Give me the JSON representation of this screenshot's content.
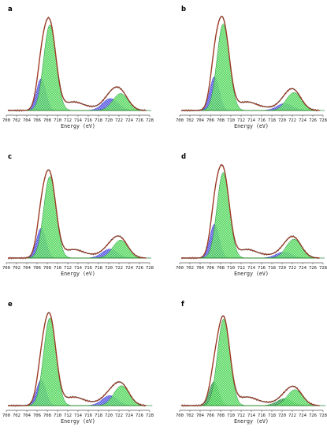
{
  "figure": {
    "colors": {
      "fit_envelope": "#a13b23",
      "data_points": "#4a4a4a",
      "peak_blue": "#3f3fe0",
      "peak_green": "#3fd24a",
      "peak_dark_green": "#1f8a3a",
      "baseline": "#2a8a2a",
      "axis": "#555555"
    }
  },
  "chart_data": [
    {
      "type": "line",
      "label": "a",
      "xlabel": "Energy (eV)",
      "xlim": [
        700,
        728
      ],
      "xticks": [
        700,
        702,
        704,
        706,
        708,
        710,
        712,
        714,
        716,
        718,
        720,
        722,
        724,
        726,
        728
      ],
      "grid": false,
      "series": [
        {
          "role": "fit-envelope",
          "peak_heights": [
            1.0,
            0.25
          ]
        },
        {
          "role": "peak-1",
          "center": 706.8,
          "height": 0.32
        },
        {
          "role": "peak-2",
          "center": 708.5,
          "height": 0.86
        },
        {
          "role": "peak-3",
          "center": 720.3,
          "height": 0.12
        },
        {
          "role": "peak-4",
          "center": 722.3,
          "height": 0.17
        }
      ]
    },
    {
      "type": "line",
      "label": "b",
      "xlabel": "Energy (eV)",
      "xlim": [
        700,
        728
      ],
      "xticks": [
        700,
        702,
        704,
        706,
        708,
        710,
        712,
        714,
        716,
        718,
        720,
        722,
        724,
        726,
        728
      ],
      "grid": false,
      "series": [
        {
          "role": "fit-envelope",
          "peak_heights": [
            1.0,
            0.24
          ]
        },
        {
          "role": "peak-1",
          "center": 706.8,
          "height": 0.34
        },
        {
          "role": "peak-2",
          "center": 708.5,
          "height": 0.87
        },
        {
          "role": "peak-3",
          "center": 720.5,
          "height": 0.07
        },
        {
          "role": "peak-4",
          "center": 722.3,
          "height": 0.18
        }
      ]
    },
    {
      "type": "line",
      "label": "c",
      "xlabel": "Energy (eV)",
      "xlim": [
        700,
        728
      ],
      "xticks": [
        700,
        702,
        704,
        706,
        708,
        710,
        712,
        714,
        716,
        718,
        720,
        722,
        724,
        726,
        728
      ],
      "grid": false,
      "series": [
        {
          "role": "fit-envelope",
          "peak_heights": [
            1.0,
            0.26
          ]
        },
        {
          "role": "peak-1",
          "center": 706.8,
          "height": 0.3
        },
        {
          "role": "peak-2",
          "center": 708.5,
          "height": 0.82
        },
        {
          "role": "peak-3",
          "center": 720.2,
          "height": 0.09
        },
        {
          "role": "peak-4",
          "center": 722.3,
          "height": 0.18
        }
      ]
    },
    {
      "type": "line",
      "label": "d",
      "xlabel": "Energy (eV)",
      "xlim": [
        700,
        728
      ],
      "xticks": [
        700,
        702,
        704,
        706,
        708,
        710,
        712,
        714,
        716,
        718,
        720,
        722,
        724,
        726,
        728
      ],
      "grid": false,
      "series": [
        {
          "role": "fit-envelope",
          "peak_heights": [
            1.0,
            0.24
          ]
        },
        {
          "role": "peak-1",
          "center": 706.8,
          "height": 0.34
        },
        {
          "role": "peak-2",
          "center": 708.5,
          "height": 0.86
        },
        {
          "role": "peak-3",
          "center": 720.3,
          "height": 0.06
        },
        {
          "role": "peak-4",
          "center": 722.3,
          "height": 0.19
        }
      ]
    },
    {
      "type": "line",
      "label": "e",
      "xlabel": "Energy (eV)",
      "xlim": [
        700,
        728
      ],
      "xticks": [
        700,
        702,
        704,
        706,
        708,
        710,
        712,
        714,
        716,
        718,
        720,
        722,
        724,
        726,
        728
      ],
      "grid": false,
      "series": [
        {
          "role": "fit-envelope",
          "peak_heights": [
            1.0,
            0.26
          ]
        },
        {
          "role": "peak-1",
          "center": 706.8,
          "height": 0.26
        },
        {
          "role": "peak-2",
          "center": 708.5,
          "height": 0.88
        },
        {
          "role": "peak-3",
          "center": 720.2,
          "height": 0.1
        },
        {
          "role": "peak-4",
          "center": 722.5,
          "height": 0.2
        }
      ]
    },
    {
      "type": "line",
      "label": "f",
      "xlabel": "Energy (eV)",
      "xlim": [
        700,
        728
      ],
      "xticks": [
        700,
        702,
        704,
        706,
        708,
        710,
        712,
        714,
        716,
        718,
        720,
        722,
        724,
        726,
        728
      ],
      "grid": false,
      "series": [
        {
          "role": "fit-envelope",
          "peak_heights": [
            1.0,
            0.22
          ]
        },
        {
          "role": "peak-1",
          "center": 706.7,
          "height": 0.24
        },
        {
          "role": "peak-2",
          "center": 708.6,
          "height": 0.87
        },
        {
          "role": "peak-3",
          "center": 720.5,
          "height": 0.07
        },
        {
          "role": "peak-4",
          "center": 722.5,
          "height": 0.16
        }
      ]
    }
  ]
}
